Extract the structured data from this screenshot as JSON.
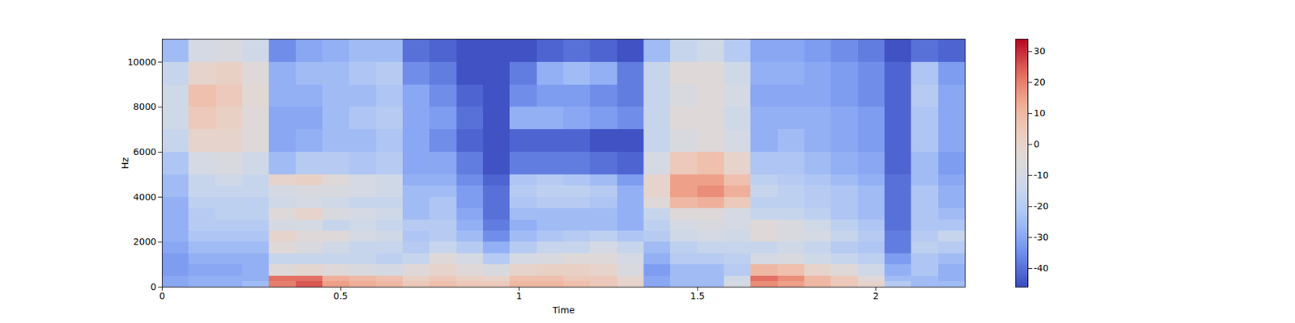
{
  "chart_data": {
    "type": "heatmap",
    "xlabel": "Time",
    "ylabel": "Hz",
    "xlim": [
      0,
      2.25
    ],
    "xticks": [
      0,
      0.5,
      1,
      1.5,
      2
    ],
    "ylim": [
      0,
      11025
    ],
    "yticks": [
      0,
      2000,
      4000,
      6000,
      8000,
      10000
    ],
    "x_bins": [
      0,
      0.075,
      0.15,
      0.225,
      0.3,
      0.375,
      0.45,
      0.525,
      0.6,
      0.675,
      0.75,
      0.825,
      0.9,
      0.975,
      1.05,
      1.125,
      1.2,
      1.275,
      1.35,
      1.425,
      1.5,
      1.575,
      1.65,
      1.725,
      1.8,
      1.875,
      1.95,
      2.025,
      2.1,
      2.175,
      2.25
    ],
    "y_bins": [
      0,
      250,
      500,
      1000,
      1500,
      2000,
      2500,
      3000,
      3500,
      4000,
      4500,
      5000,
      6000,
      7000,
      8000,
      9000,
      10000,
      11025
    ],
    "cells": [
      [
        -30,
        -30,
        -32,
        -32,
        -30,
        -28,
        -28,
        -28,
        -28,
        -25,
        -25,
        -22,
        -15,
        -12,
        -12,
        -15,
        -25
      ],
      [
        -28,
        -28,
        -30,
        -28,
        -25,
        -22,
        -20,
        -20,
        -18,
        -15,
        -15,
        -10,
        0,
        5,
        8,
        0,
        -10
      ],
      [
        -28,
        -28,
        -30,
        -28,
        -25,
        -22,
        -20,
        -18,
        -18,
        -15,
        -12,
        -8,
        0,
        2,
        5,
        2,
        -8
      ],
      [
        -25,
        -28,
        -28,
        -28,
        -25,
        -22,
        -20,
        -18,
        -18,
        -15,
        -15,
        -12,
        -5,
        -5,
        -3,
        -5,
        -12
      ],
      [
        20,
        22,
        -5,
        -15,
        -5,
        0,
        -10,
        -5,
        -12,
        -10,
        0,
        -25,
        -30,
        -30,
        -28,
        -28,
        -35
      ],
      [
        25,
        22,
        -2,
        -15,
        -8,
        -5,
        -10,
        0,
        -10,
        -8,
        2,
        -20,
        -28,
        -30,
        -28,
        -25,
        -30
      ],
      [
        15,
        12,
        -5,
        -15,
        -12,
        -5,
        -15,
        -8,
        -12,
        -8,
        -5,
        -20,
        -25,
        -25,
        -25,
        -25,
        -28
      ],
      [
        12,
        10,
        -8,
        -15,
        -15,
        -10,
        -12,
        -10,
        -15,
        -10,
        -10,
        -22,
        -25,
        -22,
        -25,
        -22,
        -25
      ],
      [
        10,
        8,
        -10,
        -18,
        -15,
        -12,
        -15,
        -12,
        -15,
        -12,
        -12,
        -20,
        -22,
        -20,
        -22,
        -20,
        -25
      ],
      [
        5,
        2,
        -5,
        -15,
        -20,
        -22,
        -20,
        -25,
        -25,
        -25,
        -28,
        -30,
        -30,
        -30,
        -30,
        -35,
        -40
      ],
      [
        8,
        5,
        0,
        -5,
        -15,
        -20,
        -20,
        -22,
        -22,
        -25,
        -28,
        -30,
        -35,
        -32,
        -35,
        -38,
        -42
      ],
      [
        5,
        2,
        -5,
        -10,
        -20,
        -25,
        -28,
        -30,
        -32,
        -32,
        -35,
        -38,
        -42,
        -40,
        -42,
        -45,
        -45
      ],
      [
        5,
        0,
        -8,
        -20,
        -28,
        -35,
        -38,
        -40,
        -40,
        -40,
        -42,
        -45,
        -45,
        -45,
        -45,
        -45,
        -45
      ],
      [
        10,
        8,
        0,
        -10,
        -20,
        -25,
        -28,
        -25,
        -22,
        -20,
        -22,
        -38,
        -42,
        -28,
        -35,
        -38,
        -45
      ],
      [
        10,
        8,
        2,
        -8,
        -15,
        -22,
        -25,
        -25,
        -20,
        -18,
        -20,
        -38,
        -42,
        -28,
        -32,
        -28,
        -42
      ],
      [
        8,
        5,
        2,
        -5,
        -15,
        -20,
        -25,
        -25,
        -20,
        -18,
        -22,
        -38,
        -42,
        -30,
        -32,
        -25,
        -40
      ],
      [
        5,
        5,
        0,
        -5,
        -10,
        -18,
        -25,
        -25,
        -22,
        -20,
        -25,
        -40,
        -45,
        -32,
        -35,
        -28,
        -42
      ],
      [
        0,
        -2,
        -8,
        -10,
        -15,
        -22,
        -28,
        -28,
        -28,
        -28,
        -32,
        -42,
        -45,
        -35,
        -38,
        -38,
        -45
      ],
      [
        -30,
        -30,
        -32,
        -28,
        -25,
        -20,
        -18,
        -15,
        -5,
        0,
        0,
        -10,
        -15,
        -15,
        -15,
        -15,
        -25
      ],
      [
        -25,
        -25,
        -25,
        -20,
        -18,
        -12,
        -10,
        -5,
        10,
        15,
        15,
        5,
        -8,
        -5,
        -8,
        -5,
        -15
      ],
      [
        -25,
        -25,
        -25,
        -20,
        -15,
        -10,
        -8,
        -5,
        12,
        18,
        15,
        8,
        -5,
        -5,
        -5,
        -5,
        -12
      ],
      [
        -10,
        -12,
        -20,
        -18,
        -15,
        -12,
        -10,
        -10,
        5,
        12,
        8,
        0,
        -10,
        -12,
        -10,
        -12,
        -20
      ],
      [
        18,
        22,
        10,
        -10,
        -15,
        -5,
        -5,
        -15,
        -18,
        -15,
        -18,
        -22,
        -28,
        -28,
        -30,
        -28,
        -30
      ],
      [
        15,
        18,
        8,
        -8,
        -12,
        -8,
        -8,
        -15,
        -18,
        -18,
        -20,
        -22,
        -25,
        -28,
        -30,
        -28,
        -30
      ],
      [
        10,
        10,
        0,
        -12,
        -15,
        -10,
        -12,
        -18,
        -20,
        -20,
        -22,
        -25,
        -28,
        -28,
        -30,
        -30,
        -32
      ],
      [
        5,
        5,
        -5,
        -15,
        -20,
        -15,
        -18,
        -22,
        -22,
        -22,
        -25,
        -28,
        -30,
        -30,
        -32,
        -32,
        -35
      ],
      [
        0,
        -5,
        -12,
        -18,
        -22,
        -20,
        -22,
        -25,
        -25,
        -25,
        -28,
        -30,
        -32,
        -32,
        -35,
        -35,
        -38
      ],
      [
        -20,
        -25,
        -28,
        -32,
        -38,
        -38,
        -40,
        -40,
        -40,
        -40,
        -40,
        -42,
        -42,
        -42,
        -42,
        -42,
        -45
      ],
      [
        -25,
        -25,
        -22,
        -22,
        -18,
        -20,
        -22,
        -22,
        -22,
        -22,
        -25,
        -25,
        -22,
        -22,
        -20,
        -22,
        -40
      ],
      [
        -25,
        -28,
        -28,
        -25,
        -20,
        -15,
        -22,
        -25,
        -28,
        -28,
        -30,
        -32,
        -30,
        -30,
        -30,
        -32,
        -42
      ]
    ],
    "color_range": [
      -46,
      34
    ],
    "color_ticks": [
      -40,
      -30,
      -20,
      -10,
      0,
      10,
      20,
      30
    ]
  }
}
